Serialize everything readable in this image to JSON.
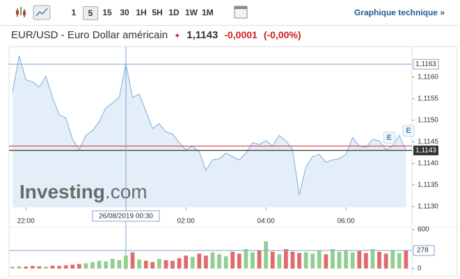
{
  "toolbar": {
    "intervals": [
      "1",
      "5",
      "15",
      "30",
      "1H",
      "5H",
      "1D",
      "1W",
      "1M"
    ],
    "selected_interval_index": 1,
    "link": "Graphique technique »"
  },
  "header": {
    "instrument": "EUR/USD - Euro Dollar américain",
    "price": "1,1143",
    "change": "-0,0001",
    "change_percent": "(-0,00%)"
  },
  "chart_data": [
    {
      "type": "area",
      "x": [
        1300,
        1310,
        1320,
        1330,
        1340,
        1350,
        1360,
        1370,
        1380,
        1390,
        1400,
        1410,
        1420,
        1430,
        1440,
        1450,
        1460,
        1470,
        1480,
        1490,
        1500,
        1510,
        1520,
        1530,
        1540,
        1550,
        1560,
        1570,
        1580,
        1590,
        1600,
        1610,
        1620,
        1630,
        1640,
        1650,
        1660,
        1670,
        1680,
        1690,
        1700,
        1710,
        1720,
        1730,
        1740,
        1750,
        1760,
        1770,
        1780,
        1790,
        1800,
        1810,
        1820,
        1830,
        1840,
        1850,
        1860,
        1870,
        1880,
        1890
      ],
      "values": [
        1.11565,
        1.1165,
        1.11594,
        1.11589,
        1.11577,
        1.11602,
        1.11553,
        1.11513,
        1.11505,
        1.11456,
        1.11432,
        1.11465,
        1.11476,
        1.11497,
        1.11529,
        1.1154,
        1.11553,
        1.11631,
        1.11553,
        1.11561,
        1.11521,
        1.11481,
        1.11492,
        1.11473,
        1.11468,
        1.11448,
        1.11432,
        1.1144,
        1.11427,
        1.11384,
        1.11408,
        1.11411,
        1.11424,
        1.11416,
        1.11408,
        1.11424,
        1.11448,
        1.11444,
        1.11453,
        1.1144,
        1.11465,
        1.11452,
        1.11432,
        1.11327,
        1.11392,
        1.11416,
        1.11421,
        1.11403,
        1.11408,
        1.11411,
        1.11421,
        1.1146,
        1.1144,
        1.11437,
        1.11456,
        1.11452,
        1.11432,
        1.1144,
        1.11465,
        1.1143
      ],
      "color": "#7aaddb",
      "fill": "#e4eef8",
      "xlim": [
        1300,
        1899
      ],
      "ylim": [
        1.11298,
        1.11666
      ],
      "xticks": [
        {
          "value": 1320,
          "label": "22:00"
        },
        {
          "value": 1560,
          "label": "02:00"
        },
        {
          "value": 1680,
          "label": "04:00"
        },
        {
          "value": 1800,
          "label": "06:00"
        }
      ],
      "yticks": [
        {
          "value": 1.113,
          "label": "1,1130"
        },
        {
          "value": 1.1135,
          "label": "1,1135"
        },
        {
          "value": 1.114,
          "label": "1,1140"
        },
        {
          "value": 1.1145,
          "label": "1,1145"
        },
        {
          "value": 1.115,
          "label": "1,1150"
        },
        {
          "value": 1.1155,
          "label": "1,1155"
        },
        {
          "value": 1.116,
          "label": "1,1160"
        }
      ],
      "crosshair": {
        "x": 1470,
        "x_label": "26/08/2019 00:30",
        "y": 1.1163,
        "y_label": "1,1163"
      },
      "last_price": {
        "value": 1.1143,
        "label": "1,1143"
      },
      "previous_close": 1.1144,
      "events": [
        {
          "x": 1865,
          "label": "E"
        },
        {
          "x": 1894,
          "label": "E"
        }
      ],
      "watermark": [
        "Investing",
        ".com"
      ]
    },
    {
      "type": "bar",
      "values": [
        30,
        35,
        30,
        40,
        35,
        30,
        45,
        40,
        50,
        60,
        70,
        80,
        100,
        120,
        110,
        150,
        130,
        200,
        250,
        140,
        120,
        100,
        150,
        130,
        120,
        160,
        200,
        180,
        230,
        200,
        250,
        220,
        190,
        260,
        230,
        300,
        250,
        280,
        420,
        260,
        220,
        300,
        260,
        240,
        250,
        230,
        280,
        220,
        300,
        260,
        280,
        250,
        270,
        240,
        300,
        260,
        230,
        280,
        240,
        278
      ],
      "up_color": "#90cf90",
      "down_color": "#e26a6a",
      "ylim": [
        0,
        600
      ],
      "yticks": [
        0,
        600
      ],
      "last_value": 278
    }
  ]
}
